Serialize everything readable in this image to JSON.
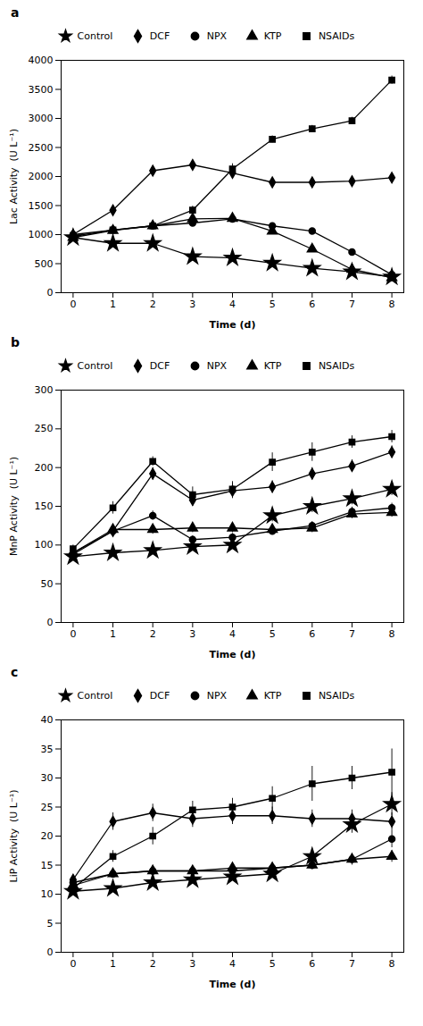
{
  "chart_data": [
    {
      "type": "line",
      "title": "a",
      "x_label": "Time (d)",
      "y_label": "Lac Activity  (U L⁻¹)",
      "x": [
        0,
        1,
        2,
        3,
        4,
        5,
        6,
        7,
        8
      ],
      "xlim": [
        -0.3,
        8.3
      ],
      "xticks": [
        0,
        1,
        2,
        3,
        4,
        5,
        6,
        7,
        8
      ],
      "ylim": [
        0,
        4000
      ],
      "yticks": [
        0,
        500,
        1000,
        1500,
        2000,
        2500,
        3000,
        3500,
        4000
      ],
      "grid": false,
      "legend": "upper left",
      "series": [
        {
          "name": "Control",
          "color": "#000000",
          "marker": "star",
          "values": [
            950,
            850,
            850,
            620,
            600,
            510,
            420,
            360,
            270
          ],
          "yerr": [
            40,
            30,
            30,
            30,
            30,
            30,
            30,
            25,
            25
          ]
        },
        {
          "name": "DCF",
          "color": "#000000",
          "marker": "diamond",
          "values": [
            1000,
            1420,
            2100,
            2200,
            2060,
            1900,
            1900,
            1920,
            1980
          ],
          "yerr": [
            40,
            60,
            50,
            50,
            100,
            50,
            50,
            50,
            50
          ]
        },
        {
          "name": "NPX",
          "color": "#000000",
          "marker": "circle",
          "values": [
            1000,
            1080,
            1150,
            1200,
            1270,
            1150,
            1060,
            700,
            310
          ],
          "yerr": [
            40,
            40,
            40,
            40,
            40,
            40,
            40,
            40,
            30
          ]
        },
        {
          "name": "KTP",
          "color": "#000000",
          "marker": "triangle",
          "values": [
            950,
            1070,
            1150,
            1270,
            1280,
            1060,
            750,
            400,
            260
          ],
          "yerr": [
            40,
            40,
            40,
            40,
            40,
            40,
            40,
            30,
            25
          ]
        },
        {
          "name": "NSAIDs",
          "color": "#000000",
          "marker": "square",
          "values": [
            970,
            1080,
            1150,
            1420,
            2130,
            2640,
            2820,
            2960,
            3660
          ],
          "yerr": [
            40,
            50,
            50,
            70,
            90,
            60,
            60,
            60,
            70
          ]
        }
      ]
    },
    {
      "type": "line",
      "title": "b",
      "x_label": "Time (d)",
      "y_label": "MnP Activity  (U L⁻¹)",
      "x": [
        0,
        1,
        2,
        3,
        4,
        5,
        6,
        7,
        8
      ],
      "xlim": [
        -0.3,
        8.3
      ],
      "xticks": [
        0,
        1,
        2,
        3,
        4,
        5,
        6,
        7,
        8
      ],
      "ylim": [
        0,
        300
      ],
      "yticks": [
        0,
        50,
        100,
        150,
        200,
        250,
        300
      ],
      "grid": false,
      "legend": "upper left",
      "series": [
        {
          "name": "Control",
          "color": "#000000",
          "marker": "star",
          "values": [
            85,
            90,
            93,
            98,
            100,
            138,
            150,
            160,
            172
          ],
          "yerr": [
            5,
            5,
            5,
            5,
            5,
            8,
            8,
            8,
            8
          ]
        },
        {
          "name": "DCF",
          "color": "#000000",
          "marker": "diamond",
          "values": [
            90,
            118,
            192,
            158,
            170,
            175,
            192,
            202,
            220
          ],
          "yerr": [
            5,
            8,
            8,
            8,
            10,
            8,
            8,
            8,
            8
          ]
        },
        {
          "name": "NPX",
          "color": "#000000",
          "marker": "circle",
          "values": [
            88,
            118,
            138,
            107,
            110,
            118,
            125,
            143,
            148
          ],
          "yerr": [
            5,
            6,
            6,
            5,
            5,
            5,
            5,
            6,
            6
          ]
        },
        {
          "name": "KTP",
          "color": "#000000",
          "marker": "triangle",
          "values": [
            90,
            120,
            120,
            122,
            122,
            120,
            122,
            140,
            142
          ],
          "yerr": [
            5,
            6,
            6,
            6,
            6,
            6,
            6,
            6,
            6
          ]
        },
        {
          "name": "NSAIDs",
          "color": "#000000",
          "marker": "square",
          "values": [
            95,
            148,
            208,
            165,
            172,
            207,
            220,
            233,
            240
          ],
          "yerr": [
            5,
            8,
            6,
            10,
            10,
            12,
            12,
            8,
            8
          ]
        }
      ]
    },
    {
      "type": "line",
      "title": "c",
      "x_label": "Time (d)",
      "y_label": "LiP Activity  (U L⁻¹)",
      "x": [
        0,
        1,
        2,
        3,
        4,
        5,
        6,
        7,
        8
      ],
      "xlim": [
        -0.3,
        8.3
      ],
      "xticks": [
        0,
        1,
        2,
        3,
        4,
        5,
        6,
        7,
        8
      ],
      "ylim": [
        0,
        40
      ],
      "yticks": [
        0,
        5,
        10,
        15,
        20,
        25,
        30,
        35,
        40
      ],
      "grid": false,
      "legend": "upper left",
      "series": [
        {
          "name": "Control",
          "color": "#000000",
          "marker": "star",
          "values": [
            10.5,
            11.0,
            12.0,
            12.5,
            13.0,
            13.5,
            16.5,
            22.0,
            25.5
          ],
          "yerr": [
            0.5,
            0.5,
            0.5,
            0.5,
            0.5,
            0.5,
            1.0,
            1.5,
            2.0
          ]
        },
        {
          "name": "DCF",
          "color": "#000000",
          "marker": "diamond",
          "values": [
            12.5,
            22.5,
            24.0,
            23.0,
            23.5,
            23.5,
            23.0,
            23.0,
            22.5
          ],
          "yerr": [
            0.5,
            1.5,
            1.5,
            1.5,
            1.5,
            1.5,
            1.5,
            1.5,
            1.5
          ]
        },
        {
          "name": "NPX",
          "color": "#000000",
          "marker": "circle",
          "values": [
            12.0,
            13.5,
            14.0,
            14.0,
            14.0,
            14.5,
            15.0,
            16.0,
            19.5
          ],
          "yerr": [
            0.5,
            0.5,
            0.5,
            0.5,
            0.5,
            0.5,
            0.8,
            1.0,
            1.5
          ]
        },
        {
          "name": "KTP",
          "color": "#000000",
          "marker": "triangle",
          "values": [
            11.5,
            13.5,
            14.0,
            14.0,
            14.5,
            14.5,
            15.0,
            16.0,
            16.5
          ],
          "yerr": [
            0.5,
            0.5,
            0.5,
            0.5,
            0.5,
            0.5,
            0.5,
            0.8,
            1.0
          ]
        },
        {
          "name": "NSAIDs",
          "color": "#000000",
          "marker": "square",
          "values": [
            11.0,
            16.5,
            20.0,
            24.5,
            25.0,
            26.5,
            29.0,
            30.0,
            31.0
          ],
          "yerr": [
            0.5,
            1.0,
            1.5,
            1.5,
            1.5,
            2.0,
            3.0,
            2.0,
            4.0
          ]
        }
      ]
    }
  ]
}
